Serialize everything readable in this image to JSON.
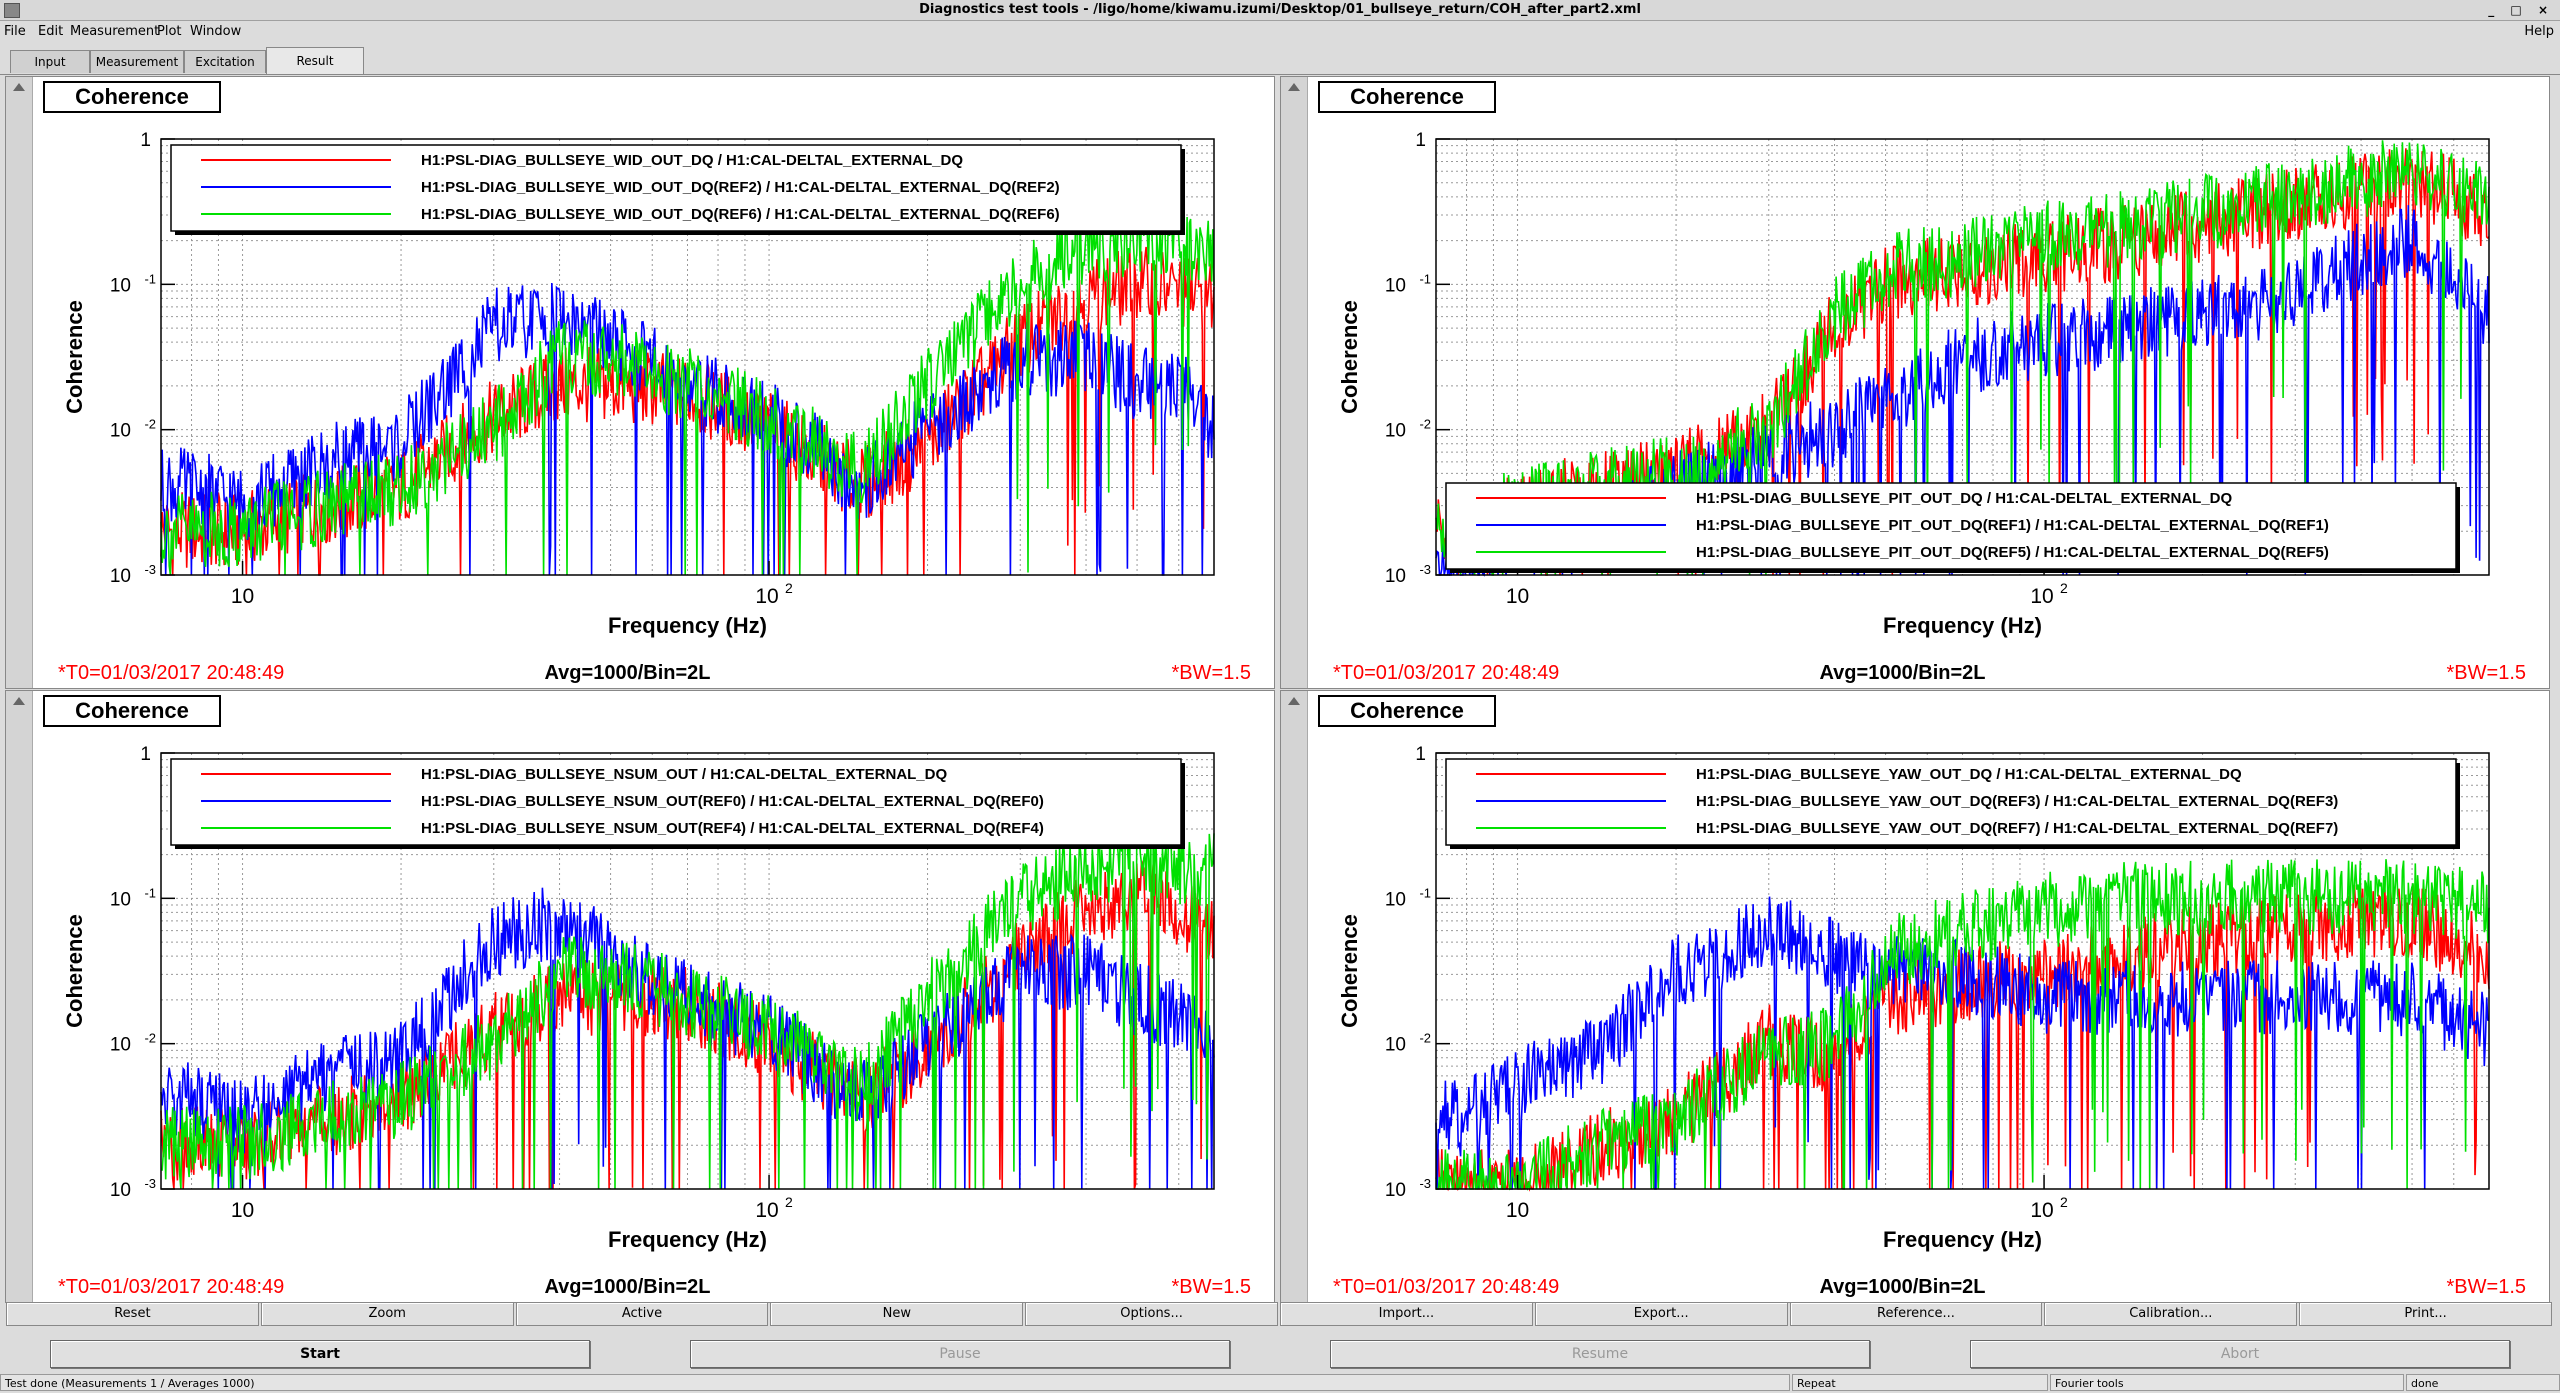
{
  "window": {
    "title": "Diagnostics test tools - /ligo/home/kiwamu.izumi/Desktop/01_bullseye_return/COH_after_part2.xml",
    "controls": "_ □ ×"
  },
  "menu": {
    "items": [
      "File",
      "Edit",
      "Measurement",
      "Plot",
      "Window"
    ],
    "help": "Help"
  },
  "tabs": [
    {
      "label": "Input"
    },
    {
      "label": "Measurement"
    },
    {
      "label": "Excitation"
    },
    {
      "label": "Result"
    }
  ],
  "plot_common": {
    "ylabel": "Coherence",
    "xlabel": "Frequency (Hz)",
    "t0": "*T0=01/03/2017 20:48:49",
    "avg": "Avg=1000/Bin=2L",
    "bw": "*BW=1.5",
    "x_ticks": [
      "10",
      "10^2"
    ],
    "y_ticks": [
      "1",
      "10^-1",
      "10^-2",
      "10^-3"
    ]
  },
  "panels": [
    {
      "title": "Coherence",
      "legend": [
        "H1:PSL-DIAG_BULLSEYE_WID_OUT_DQ / H1:CAL-DELTAL_EXTERNAL_DQ",
        "H1:PSL-DIAG_BULLSEYE_WID_OUT_DQ(REF2) / H1:CAL-DELTAL_EXTERNAL_DQ(REF2)",
        "H1:PSL-DIAG_BULLSEYE_WID_OUT_DQ(REF6) / H1:CAL-DELTAL_EXTERNAL_DQ(REF6)"
      ]
    },
    {
      "title": "Coherence",
      "legend": [
        "H1:PSL-DIAG_BULLSEYE_PIT_OUT_DQ / H1:CAL-DELTAL_EXTERNAL_DQ",
        "H1:PSL-DIAG_BULLSEYE_PIT_OUT_DQ(REF1) / H1:CAL-DELTAL_EXTERNAL_DQ(REF1)",
        "H1:PSL-DIAG_BULLSEYE_PIT_OUT_DQ(REF5) / H1:CAL-DELTAL_EXTERNAL_DQ(REF5)"
      ]
    },
    {
      "title": "Coherence",
      "legend": [
        "H1:PSL-DIAG_BULLSEYE_NSUM_OUT / H1:CAL-DELTAL_EXTERNAL_DQ",
        "H1:PSL-DIAG_BULLSEYE_NSUM_OUT(REF0) / H1:CAL-DELTAL_EXTERNAL_DQ(REF0)",
        "H1:PSL-DIAG_BULLSEYE_NSUM_OUT(REF4) / H1:CAL-DELTAL_EXTERNAL_DQ(REF4)"
      ]
    },
    {
      "title": "Coherence",
      "legend": [
        "H1:PSL-DIAG_BULLSEYE_YAW_OUT_DQ / H1:CAL-DELTAL_EXTERNAL_DQ",
        "H1:PSL-DIAG_BULLSEYE_YAW_OUT_DQ(REF3) / H1:CAL-DELTAL_EXTERNAL_DQ(REF3)",
        "H1:PSL-DIAG_BULLSEYE_YAW_OUT_DQ(REF7) / H1:CAL-DELTAL_EXTERNAL_DQ(REF7)"
      ]
    }
  ],
  "series_colors": [
    "#ff0000",
    "#0000ff",
    "#00e000"
  ],
  "chart_data": [
    {
      "type": "line",
      "xscale": "log",
      "yscale": "log",
      "xlim": [
        7,
        700
      ],
      "ylim": [
        0.001,
        1
      ],
      "legend_position": "top",
      "x": [
        8,
        10,
        15,
        20,
        30,
        40,
        50,
        70,
        100,
        150,
        200,
        300,
        400,
        500,
        600,
        700
      ],
      "series": [
        {
          "values": [
            0.002,
            0.002,
            0.003,
            0.004,
            0.012,
            0.02,
            0.02,
            0.018,
            0.01,
            0.004,
            0.008,
            0.04,
            0.08,
            0.1,
            0.09,
            0.08
          ]
        },
        {
          "values": [
            0.004,
            0.003,
            0.006,
            0.008,
            0.05,
            0.06,
            0.04,
            0.02,
            0.012,
            0.004,
            0.01,
            0.03,
            0.03,
            0.02,
            0.02,
            0.01
          ]
        },
        {
          "values": [
            0.002,
            0.002,
            0.003,
            0.004,
            0.01,
            0.03,
            0.03,
            0.02,
            0.012,
            0.005,
            0.02,
            0.1,
            0.18,
            0.2,
            0.19,
            0.17
          ]
        }
      ]
    },
    {
      "type": "line",
      "xscale": "log",
      "yscale": "log",
      "xlim": [
        7,
        700
      ],
      "ylim": [
        0.001,
        1
      ],
      "legend_position": "bottom",
      "x": [
        8,
        10,
        15,
        20,
        30,
        40,
        50,
        70,
        100,
        150,
        200,
        300,
        400,
        500,
        600,
        700
      ],
      "series": [
        {
          "values": [
            0.002,
            0.003,
            0.004,
            0.005,
            0.01,
            0.05,
            0.1,
            0.12,
            0.15,
            0.2,
            0.25,
            0.35,
            0.45,
            0.5,
            0.4,
            0.3
          ]
        },
        {
          "values": [
            0.001,
            0.002,
            0.002,
            0.004,
            0.006,
            0.01,
            0.015,
            0.03,
            0.04,
            0.05,
            0.06,
            0.08,
            0.15,
            0.2,
            0.1,
            0.06
          ]
        },
        {
          "values": [
            0.002,
            0.003,
            0.004,
            0.005,
            0.01,
            0.06,
            0.12,
            0.15,
            0.2,
            0.25,
            0.3,
            0.4,
            0.5,
            0.6,
            0.5,
            0.4
          ]
        }
      ]
    },
    {
      "type": "line",
      "xscale": "log",
      "yscale": "log",
      "xlim": [
        7,
        700
      ],
      "ylim": [
        0.001,
        1
      ],
      "legend_position": "top",
      "x": [
        8,
        10,
        15,
        20,
        30,
        40,
        50,
        70,
        100,
        150,
        200,
        300,
        400,
        500,
        600,
        700
      ],
      "series": [
        {
          "values": [
            0.002,
            0.002,
            0.003,
            0.004,
            0.012,
            0.02,
            0.02,
            0.018,
            0.01,
            0.004,
            0.008,
            0.04,
            0.08,
            0.1,
            0.08,
            0.06
          ]
        },
        {
          "values": [
            0.004,
            0.003,
            0.006,
            0.008,
            0.05,
            0.07,
            0.04,
            0.02,
            0.012,
            0.004,
            0.01,
            0.03,
            0.03,
            0.02,
            0.015,
            0.01
          ]
        },
        {
          "values": [
            0.002,
            0.002,
            0.003,
            0.004,
            0.01,
            0.03,
            0.03,
            0.02,
            0.012,
            0.005,
            0.02,
            0.1,
            0.15,
            0.18,
            0.16,
            0.15
          ]
        }
      ]
    },
    {
      "type": "line",
      "xscale": "log",
      "yscale": "log",
      "xlim": [
        7,
        700
      ],
      "ylim": [
        0.001,
        1
      ],
      "legend_position": "top",
      "x": [
        8,
        10,
        15,
        20,
        30,
        40,
        50,
        70,
        100,
        150,
        200,
        300,
        400,
        500,
        600,
        700
      ],
      "series": [
        {
          "values": [
            0.001,
            0.001,
            0.002,
            0.003,
            0.01,
            0.008,
            0.02,
            0.025,
            0.03,
            0.04,
            0.05,
            0.06,
            0.07,
            0.07,
            0.05,
            0.04
          ]
        },
        {
          "values": [
            0.003,
            0.005,
            0.01,
            0.03,
            0.06,
            0.04,
            0.03,
            0.03,
            0.02,
            0.02,
            0.02,
            0.02,
            0.02,
            0.02,
            0.015,
            0.012
          ]
        },
        {
          "values": [
            0.001,
            0.001,
            0.002,
            0.003,
            0.008,
            0.01,
            0.04,
            0.06,
            0.08,
            0.1,
            0.1,
            0.1,
            0.1,
            0.1,
            0.09,
            0.08
          ]
        }
      ]
    }
  ],
  "toolbar_buttons": [
    "Reset",
    "Zoom",
    "Active",
    "New",
    "Options...",
    "Import...",
    "Export...",
    "Reference...",
    "Calibration...",
    "Print..."
  ],
  "action_buttons": [
    {
      "label": "Start",
      "state": "enabled"
    },
    {
      "label": "Pause",
      "state": "disabled"
    },
    {
      "label": "Resume",
      "state": "disabled"
    },
    {
      "label": "Abort",
      "state": "disabled"
    }
  ],
  "status": {
    "message": "Test done (Measurements 1 / Averages 1000)",
    "repeat": "Repeat",
    "tools": "Fourier tools",
    "state": "done"
  }
}
